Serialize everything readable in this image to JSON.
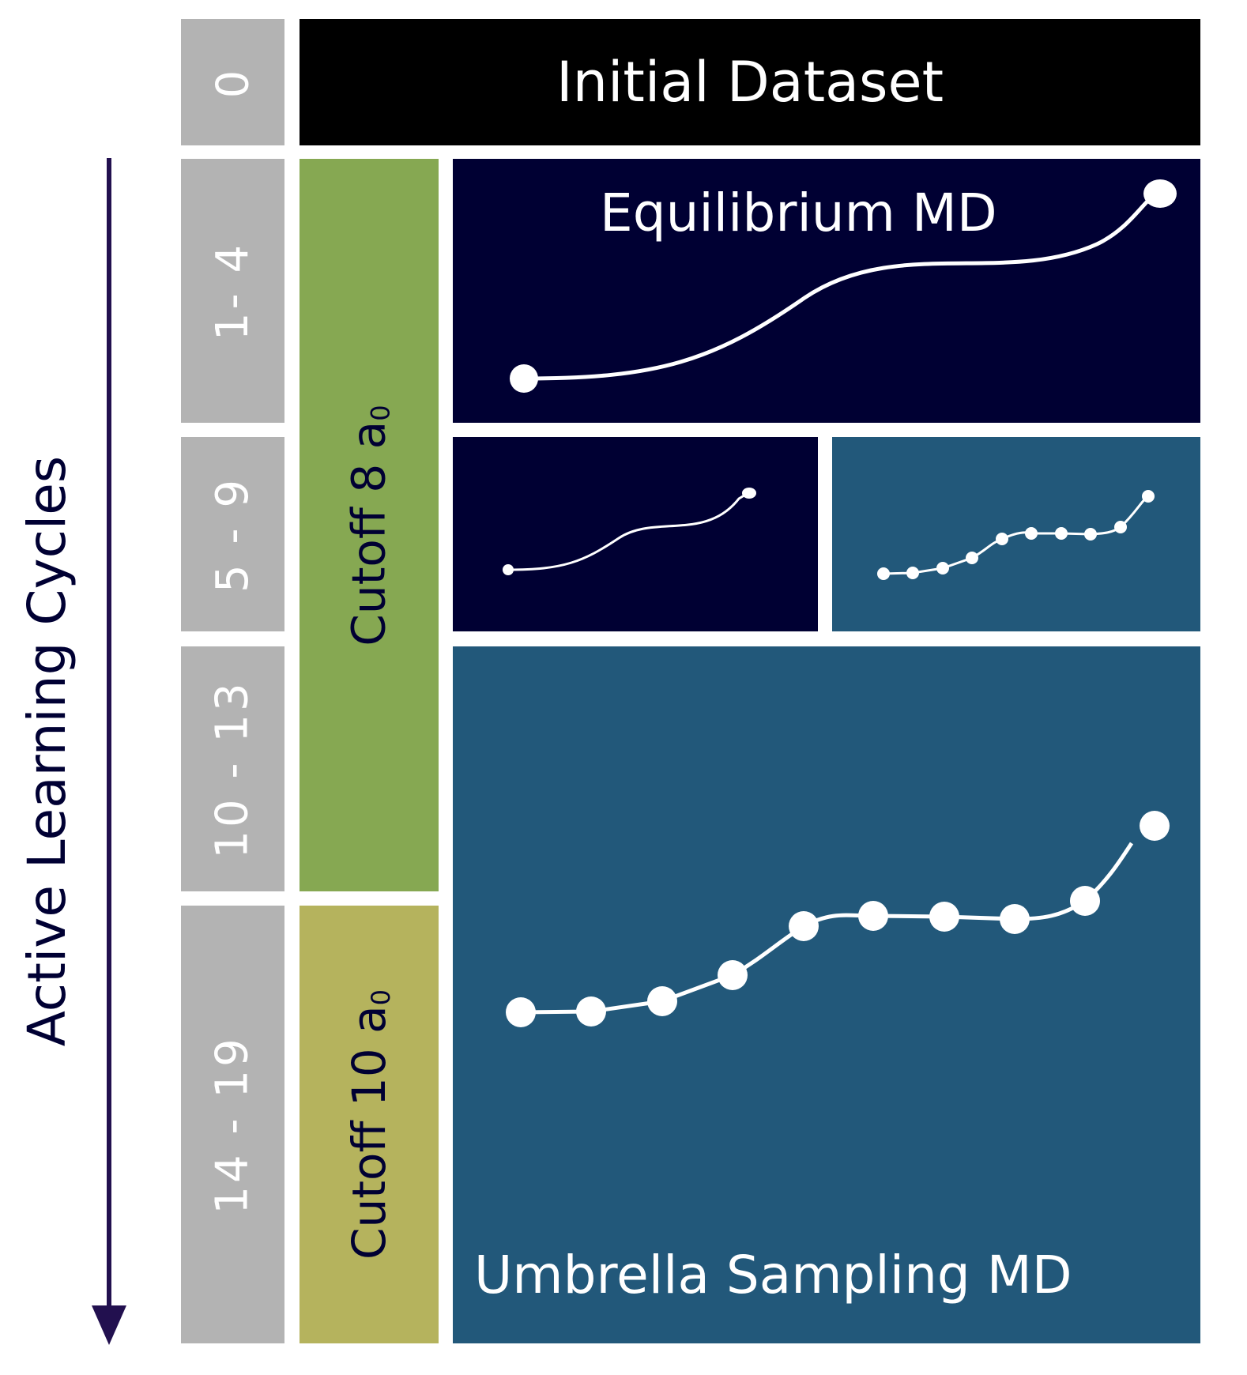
{
  "axis": {
    "label": "Active Learning Cycles",
    "arrow_color": "#22104f"
  },
  "cycles": [
    {
      "label": "0"
    },
    {
      "label": "1- 4"
    },
    {
      "label": "5 - 9"
    },
    {
      "label": "10 - 13"
    },
    {
      "label": "14 - 19"
    }
  ],
  "cutoffs": [
    {
      "text": "Cutoff 8 a",
      "subscript": "0",
      "color": "#86a852"
    },
    {
      "text": "Cutoff 10 a",
      "subscript": "0",
      "color": "#b5b35d"
    }
  ],
  "boxes": {
    "initial": {
      "title": "Initial Dataset",
      "color": "#000000"
    },
    "equilibrium": {
      "title": "Equilibrium MD",
      "color": "#000033"
    },
    "umbrella": {
      "title": "Umbrella Sampling MD",
      "color": "#22587a"
    }
  },
  "colors": {
    "cycle_gray": "#b3b3b3",
    "curve": "#ffffff"
  }
}
